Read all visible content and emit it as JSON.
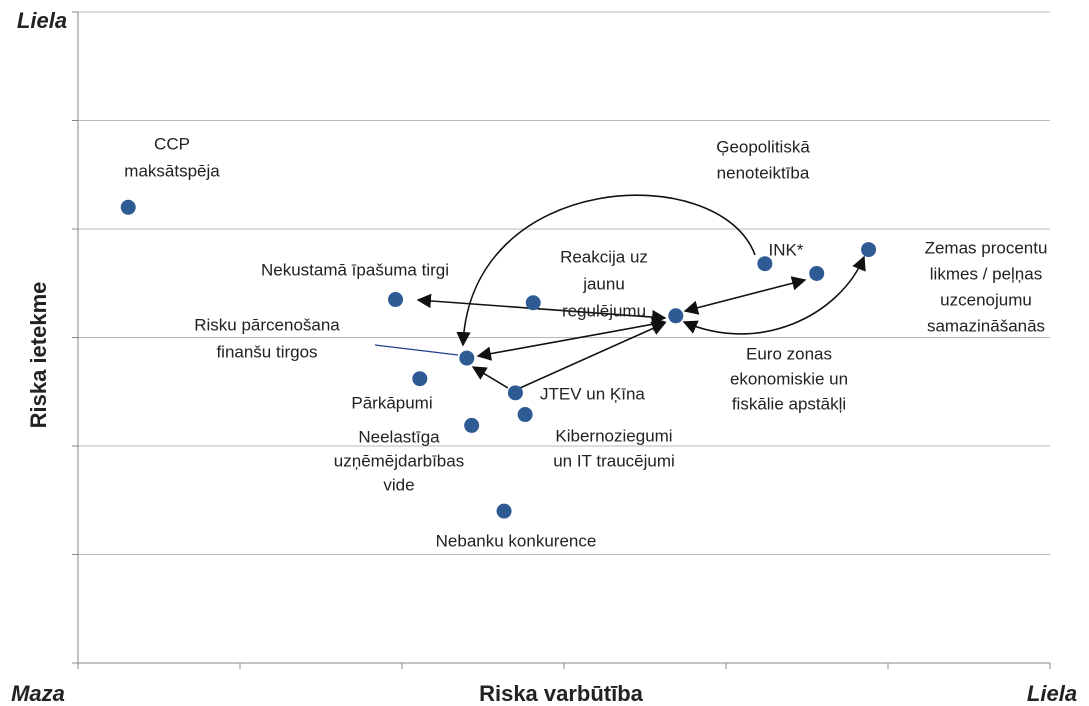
{
  "chart_data": {
    "type": "scatter",
    "x_label": "Riska varbūtība",
    "y_label": "Riska ietekme",
    "annotations": [
      "Liela",
      "Maza",
      "Liela"
    ],
    "color": "#2f5b95",
    "xlim": [
      0,
      6
    ],
    "ylim": [
      0,
      6
    ],
    "xticks": [
      0,
      1,
      2,
      3,
      4,
      5,
      6
    ],
    "yticks": [
      0,
      1,
      2,
      3,
      4,
      5,
      6
    ],
    "grid": true,
    "x": [
      0.31,
      1.96,
      2.81,
      2.4,
      2.11,
      2.43,
      2.7,
      2.76,
      2.63,
      3.69,
      4.24,
      4.56,
      4.88
    ],
    "values": [
      4.2,
      3.35,
      3.32,
      2.81,
      2.62,
      2.19,
      2.49,
      2.29,
      1.4,
      3.2,
      3.68,
      3.59,
      3.81
    ],
    "labels": [
      [
        "CCP",
        "maksātspēja"
      ],
      [
        "Nekustamā īpašuma tirgi"
      ],
      [
        "Reakcija uz",
        "jaunu",
        "regulējumu"
      ],
      [
        "Risku pārcenošana",
        "finanšu tirgos"
      ],
      [
        "Pārkāpumi"
      ],
      [
        "Neelastīga",
        "uzņēmējdarbības",
        "vide"
      ],
      [
        "JTEV un Ķīna"
      ],
      [
        "Kibernoziegumi",
        "un IT traucējumi"
      ],
      [
        "Nebanku konkurence"
      ],
      [
        "Euro zonas",
        "ekonomiskie un",
        "fiskālie apstākļi"
      ],
      [
        "Ģeopolitiskā",
        "nenoteiktība"
      ],
      [
        "INK*"
      ],
      [
        "Zemas procentu",
        "likmes / peļņas",
        "uzcenojumu",
        "samazināšanās"
      ]
    ]
  }
}
